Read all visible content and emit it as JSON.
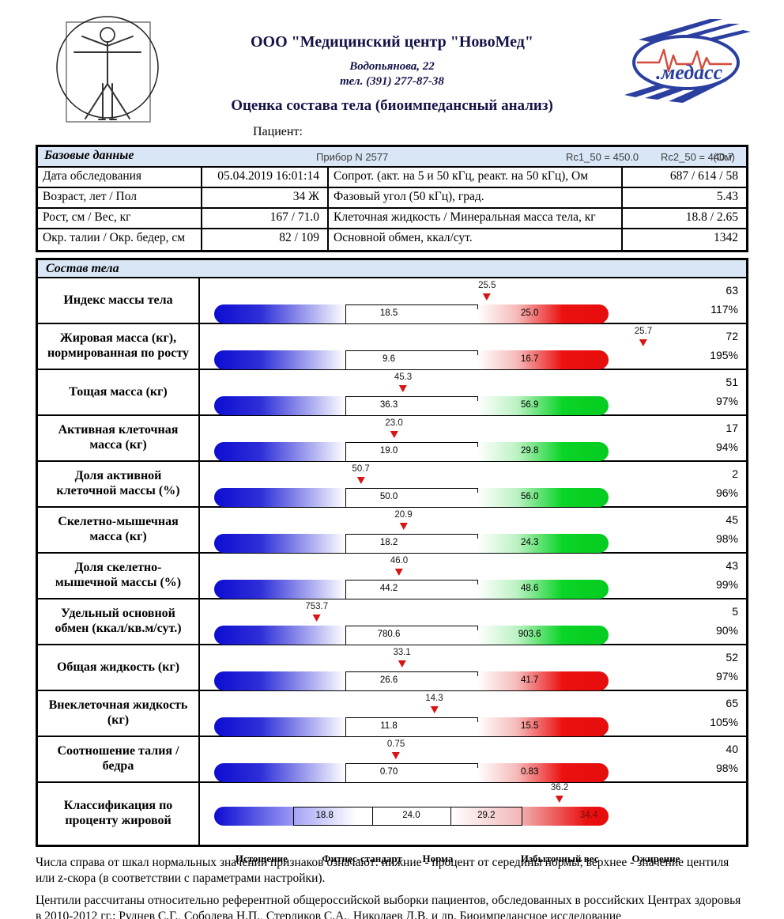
{
  "header": {
    "org_name": "ООО \"Медицинский центр \"НовоМед\"",
    "address": "Водопьянова, 22",
    "phone": "тел. (391) 277-87-38",
    "report_title": "Оценка состава тела (биоимпедансный анализ)",
    "patient_label": "Пациент:",
    "logo_text": "медасс"
  },
  "basic_data": {
    "section_title": "Базовые данные",
    "device": "Прибор N 2577",
    "rc1": "Rc1_50 = 450.0",
    "rc2": "Rc2_50 = 440.7",
    "unit": "(Ом)",
    "rows": [
      {
        "label": "Дата обследования",
        "value": "05.04.2019 16:01:14",
        "label2": "Сопрот. (акт. на 5 и 50 кГц, реакт. на 50 кГц), Ом",
        "value2": "687 / 614 / 58"
      },
      {
        "label": "Возраст, лет / Пол",
        "value": "34 Ж",
        "label2": "Фазовый угол (50 кГц), град.",
        "value2": "5.43"
      },
      {
        "label": "Рост, см / Вес, кг",
        "value": "167 / 71.0",
        "label2": "Клеточная жидкость / Минеральная масса тела, кг",
        "value2": "18.8 / 2.65"
      },
      {
        "label": "Окр. талии / Окр. бедер, см",
        "value": "82 / 109",
        "label2": "Основной обмен, ккал/сут.",
        "value2": "1342"
      }
    ]
  },
  "composition": {
    "section_title": "Состав тела",
    "rows": [
      {
        "label": "Индекс массы тела",
        "marker_value": "25.5",
        "marker_pct": 69.2,
        "low": "18.5",
        "high": "25.0",
        "zone": "red",
        "centile": "63",
        "percent": "117%"
      },
      {
        "label": "Жировая масса (кг), нормированная по росту",
        "marker_value": "25.7",
        "marker_pct": 108.8,
        "low": "9.6",
        "high": "16.7",
        "zone": "red",
        "centile": "72",
        "percent": "195%"
      },
      {
        "label": "Тощая масса (кг)",
        "marker_value": "45.3",
        "marker_pct": 47.9,
        "low": "36.3",
        "high": "56.9",
        "zone": "green",
        "centile": "51",
        "percent": "97%"
      },
      {
        "label": "Активная клеточная масса (кг)",
        "marker_value": "23.0",
        "marker_pct": 45.6,
        "low": "19.0",
        "high": "29.8",
        "zone": "green",
        "centile": "17",
        "percent": "94%"
      },
      {
        "label": "Доля активной клеточной массы (%)",
        "marker_value": "50.7",
        "marker_pct": 37.2,
        "low": "50.0",
        "high": "56.0",
        "zone": "green",
        "centile": "2",
        "percent": "96%"
      },
      {
        "label": "Скелетно-мышечная масса (кг)",
        "marker_value": "20.9",
        "marker_pct": 48.0,
        "low": "18.2",
        "high": "24.3",
        "zone": "green",
        "centile": "45",
        "percent": "98%"
      },
      {
        "label": "Доля скелетно-мышечной массы (%)",
        "marker_value": "46.0",
        "marker_pct": 46.9,
        "low": "44.2",
        "high": "48.6",
        "zone": "green",
        "centile": "43",
        "percent": "99%"
      },
      {
        "label": "Удельный основной обмен (ккал/кв.м/сут.)",
        "marker_value": "753.7",
        "marker_pct": 26.0,
        "low": "780.6",
        "high": "903.6",
        "zone": "green",
        "centile": "5",
        "percent": "90%"
      },
      {
        "label": "Общая жидкость (кг)",
        "marker_value": "33.1",
        "marker_pct": 47.6,
        "low": "26.6",
        "high": "41.7",
        "zone": "red",
        "centile": "52",
        "percent": "97%"
      },
      {
        "label": "Внеклеточная жидкость (кг)",
        "marker_value": "14.3",
        "marker_pct": 55.8,
        "low": "11.8",
        "high": "15.5",
        "zone": "red",
        "centile": "65",
        "percent": "105%"
      },
      {
        "label": "Соотношение талия / бедра",
        "marker_value": "0.75",
        "marker_pct": 46.1,
        "low": "0.70",
        "high": "0.83",
        "zone": "red",
        "centile": "40",
        "percent": "98%"
      }
    ],
    "classification": {
      "label": "Классификация по проценту жировой",
      "marker_value": "36.2",
      "marker_pct": 87.6,
      "boundaries": [
        "18.8",
        "24.0",
        "29.2",
        "34.4"
      ],
      "categories": [
        "Истощение",
        "Фитнес-стандарт",
        "Норма",
        "Избыточный вес",
        "Ожирение"
      ]
    }
  },
  "footnote": {
    "para1": "Числа справа от шкал нормальных значений признаков означают: нижние - процент от середины нормы; верхнее - значение центиля или z-скора (в соответствии с параметрами настройки).",
    "para2": "Центили рассчитаны относительно референтной общероссийской выборки пациентов, обследованных в российских Центрах здоровья в 2010-2012 гг.: Руднев С.Г., Соболева Н.П., Стерликов С.А., Николаев Д.В. и др. Биоимпедансное исследование"
  },
  "colors": {
    "header_text": "#131347",
    "section_band": "#d9e6f6",
    "border": "#000000",
    "marker_triangle": "#d81414",
    "bar_blue": "#0d0dd2",
    "bar_red": "#e60d0d",
    "bar_green": "#05cc20",
    "logo_blue": "#2a3fa0",
    "logo_ecg_red": "#d44a3a"
  }
}
